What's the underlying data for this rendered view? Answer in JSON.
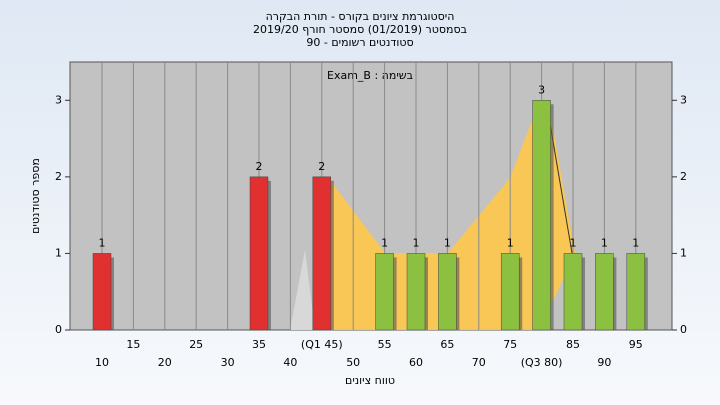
{
  "chart_data": {
    "type": "bar",
    "title": [
      "היסטוגרמת ציונים בקורס - תורת הבקרה",
      "בסמסטר  (01/2019)  סמסטר חורף 2019/20",
      "סטודנטים רשומים - 90"
    ],
    "annotation": "בשימה : Exam_B",
    "y_label": "מספר סטודנטים",
    "x_label": "טווח ציונים",
    "categories": [
      "10",
      "15",
      "20",
      "25",
      "30",
      "35",
      "40",
      "(Q1 45)",
      "50",
      "55",
      "60",
      "65",
      "70",
      "75",
      "(Q3 80)",
      "85",
      "90",
      "95"
    ],
    "values": [
      1,
      0,
      0,
      0,
      0,
      2,
      0,
      2,
      0,
      1,
      1,
      1,
      0,
      1,
      3,
      1,
      1,
      1
    ],
    "colors": [
      "#e03030",
      "#e03030",
      "#e03030",
      "#e03030",
      "#e03030",
      "#e03030",
      "#e03030",
      "#e03030",
      "#e03030",
      "#8cc040",
      "#8cc040",
      "#8cc040",
      "#8cc040",
      "#8cc040",
      "#8cc040",
      "#8cc040",
      "#8cc040",
      "#8cc040"
    ],
    "ylim": [
      0,
      3.5
    ],
    "yticks": [
      0,
      1,
      2,
      3
    ],
    "grid": true
  }
}
